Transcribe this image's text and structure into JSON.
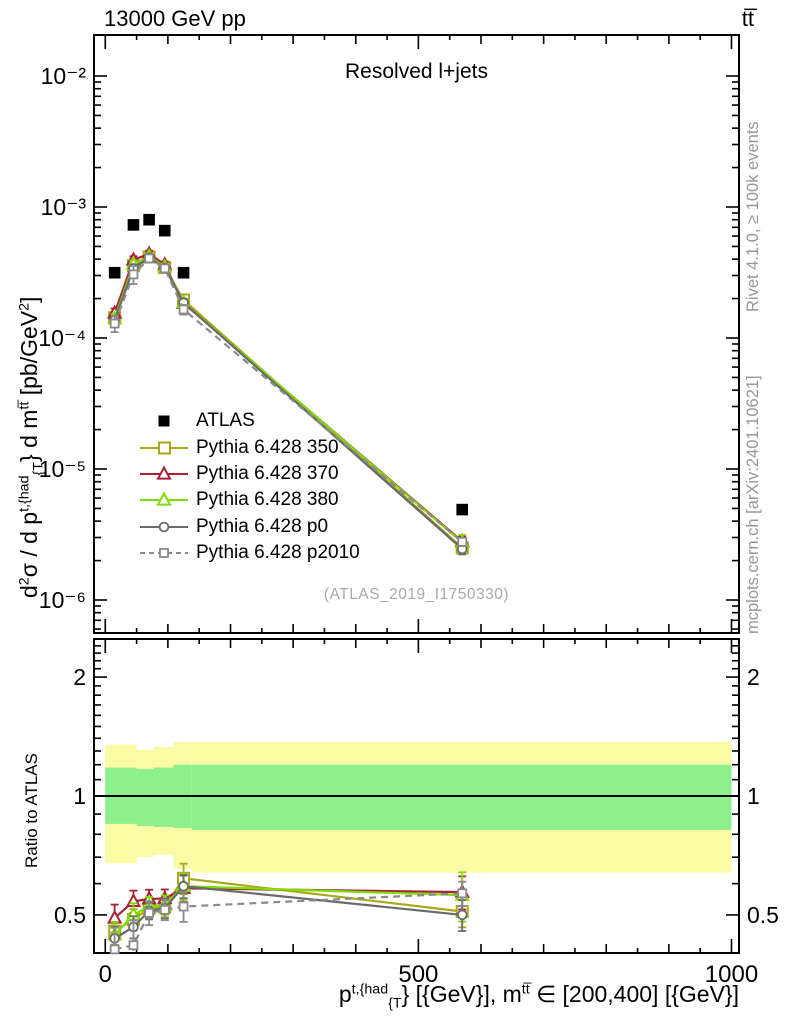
{
  "header": {
    "beam": "13000 GeV pp",
    "process": "tt̅"
  },
  "plot_title": "Resolved l+jets",
  "watermark": "(ATLAS_2019_I1750330)",
  "ratio_ylabel": "Ratio to ATLAS",
  "side_notes": {
    "top": "Rivet 4.1.0, ≥ 100k events",
    "bottom": "mcplots.cern.ch [arXiv:2401.10621]"
  },
  "axis_titles": {
    "y_tokens": [
      {
        "t": "d"
      },
      {
        "t": "2",
        "v": "sup"
      },
      {
        "t": "σ / d p"
      },
      {
        "t": "t,{had",
        "v": "sup"
      },
      {
        "t": "{T",
        "v": "sub"
      },
      {
        "t": "} d m"
      },
      {
        "t": "tt̅",
        "v": "sup"
      },
      {
        "t": " [pb/GeV"
      },
      {
        "t": "2",
        "v": "sup"
      },
      {
        "t": "]"
      }
    ],
    "x_tokens": [
      {
        "t": "p"
      },
      {
        "t": "t,{had",
        "v": "sup"
      },
      {
        "t": "{T",
        "v": "sub"
      },
      {
        "t": "} [{GeV}], m"
      },
      {
        "t": "tt̅",
        "v": "sup"
      },
      {
        "t": " ∈ [200,400] [{GeV}]"
      }
    ]
  },
  "y_ticks": [
    {
      "label": "10⁻²",
      "value": 0.01
    },
    {
      "label": "10⁻³",
      "value": 0.001
    },
    {
      "label": "10⁻⁴",
      "value": 0.0001
    },
    {
      "label": "10⁻⁵",
      "value": 1e-05
    },
    {
      "label": "10⁻⁶",
      "value": 1e-06
    }
  ],
  "ratio_ticks": [
    {
      "label": "2",
      "value": 2
    },
    {
      "label": "1",
      "value": 1
    },
    {
      "label": "0.5",
      "value": 0.5
    }
  ],
  "x_ticks": [
    {
      "label": "0",
      "value": 0
    },
    {
      "label": "500",
      "value": 500
    },
    {
      "label": "1000",
      "value": 1000
    }
  ],
  "chart_data": [
    {
      "type": "line",
      "panel": "main",
      "title": "Resolved l+jets",
      "xlabel": "p_T^{t,had} [GeV], m^{tt} ∈ [200,400] [GeV]",
      "ylabel": "d^2σ / d p_T^{t,had} d m^{tt} [pb/GeV^2]",
      "xlim": [
        -18,
        1012
      ],
      "ylim": [
        5.6e-07,
        0.0206
      ],
      "yscale": "log",
      "grid": false,
      "legend_position": "left-middle",
      "x_bin_centers": [
        15,
        45,
        70,
        95,
        125,
        570
      ],
      "series": [
        {
          "name": "ATLAS",
          "color": "#000000",
          "marker": "square-filled",
          "line": "none",
          "values": [
            0.000315,
            0.00073,
            0.0008,
            0.00066,
            0.000315,
            4.9e-06
          ],
          "err": null
        },
        {
          "name": "Pythia 6.428 350",
          "color": "#a8a818",
          "marker": "square-open",
          "line": "solid",
          "values": [
            0.000143,
            0.000356,
            0.000415,
            0.000345,
            0.000195,
            2.5e-06
          ],
          "err": [
            1.2e-05,
            2.2e-05,
            2.4e-05,
            2e-05,
            1.7e-05,
            2.2e-07
          ]
        },
        {
          "name": "Pythia 6.428 370",
          "color": "#aa2236",
          "marker": "triangle-open",
          "line": "solid",
          "values": [
            0.000155,
            0.000395,
            0.000439,
            0.000363,
            0.000184,
            2.8e-06
          ],
          "err": [
            1.3e-05,
            2.6e-05,
            2.4e-05,
            2e-05,
            1.4e-05,
            2.7e-07
          ]
        },
        {
          "name": "Pythia 6.428 380",
          "color": "#80dd00",
          "marker": "triangle-open",
          "line": "solid",
          "values": [
            0.00014,
            0.000365,
            0.00042,
            0.00035,
            0.000186,
            2.75e-06
          ],
          "err": [
            1.2e-05,
            2.6e-05,
            2.4e-05,
            2e-05,
            1.4e-05,
            3.9e-07
          ]
        },
        {
          "name": "Pythia 6.428 p0",
          "color": "#6a6a6a",
          "marker": "circle-open",
          "line": "solid",
          "values": [
            0.000137,
            0.00034,
            0.00041,
            0.000343,
            0.000186,
            2.45e-06
          ],
          "err": [
            1e-05,
            2.2e-05,
            2e-05,
            2e-05,
            1.3e-05,
            2.2e-07
          ]
        },
        {
          "name": "Pythia 6.428 p2010",
          "color": "#8a8a8a",
          "marker": "square-open-small",
          "line": "dashed",
          "values": [
            0.000129,
            0.000306,
            0.000405,
            0.00034,
            0.000165,
            2.78e-06
          ],
          "err": [
            1.8e-05,
            4.8e-05,
            2.8e-05,
            2e-05,
            1.4e-05,
            2e-07
          ]
        }
      ]
    },
    {
      "type": "ratio",
      "panel": "ratio",
      "ylabel": "Ratio to ATLAS",
      "reference": "ATLAS",
      "ylim": [
        0.4,
        2.49
      ],
      "yscale": "log",
      "x_bin_centers": [
        15,
        45,
        70,
        95,
        125,
        570
      ],
      "band_colors": {
        "outer": "#fbfba5",
        "inner": "#8df08d"
      },
      "bands": [
        {
          "x0": 0,
          "x1": 50,
          "yellow": [
            0.675,
            1.35
          ],
          "green": [
            0.85,
            1.18
          ]
        },
        {
          "x0": 50,
          "x1": 77,
          "yellow": [
            0.7,
            1.31
          ],
          "green": [
            0.84,
            1.17
          ]
        },
        {
          "x0": 77,
          "x1": 109,
          "yellow": [
            0.71,
            1.33
          ],
          "green": [
            0.835,
            1.18
          ]
        },
        {
          "x0": 109,
          "x1": 138,
          "yellow": [
            0.655,
            1.37
          ],
          "green": [
            0.83,
            1.2
          ]
        },
        {
          "x0": 138,
          "x1": 1000,
          "yellow": [
            0.64,
            1.37
          ],
          "green": [
            0.82,
            1.2
          ]
        }
      ],
      "series": [
        {
          "name": "Pythia 6.428 350",
          "color": "#a8a818",
          "marker": "square-open",
          "line": "solid",
          "ratio": [
            0.455,
            0.487,
            0.519,
            0.523,
            0.619,
            0.51
          ],
          "err": [
            0.035,
            0.03,
            0.03,
            0.03,
            0.055,
            0.045
          ]
        },
        {
          "name": "Pythia 6.428 370",
          "color": "#aa2236",
          "marker": "triangle-open",
          "line": "solid",
          "ratio": [
            0.491,
            0.541,
            0.549,
            0.55,
            0.584,
            0.571
          ],
          "err": [
            0.04,
            0.035,
            0.03,
            0.03,
            0.045,
            0.055
          ]
        },
        {
          "name": "Pythia 6.428 380",
          "color": "#80dd00",
          "marker": "triangle-open",
          "line": "solid",
          "ratio": [
            0.445,
            0.5,
            0.525,
            0.53,
            0.591,
            0.561
          ],
          "err": [
            0.035,
            0.035,
            0.03,
            0.03,
            0.045,
            0.08
          ]
        },
        {
          "name": "Pythia 6.428 p0",
          "color": "#6a6a6a",
          "marker": "circle-open",
          "line": "solid",
          "ratio": [
            0.436,
            0.466,
            0.512,
            0.52,
            0.591,
            0.5
          ],
          "err": [
            0.03,
            0.03,
            0.025,
            0.03,
            0.04,
            0.045
          ]
        },
        {
          "name": "Pythia 6.428 p2010",
          "color": "#8a8a8a",
          "marker": "square-open-small",
          "line": "dashed",
          "ratio": [
            0.409,
            0.419,
            0.506,
            0.515,
            0.525,
            0.567
          ],
          "err": [
            0.055,
            0.065,
            0.035,
            0.03,
            0.045,
            0.04
          ]
        }
      ]
    }
  ]
}
